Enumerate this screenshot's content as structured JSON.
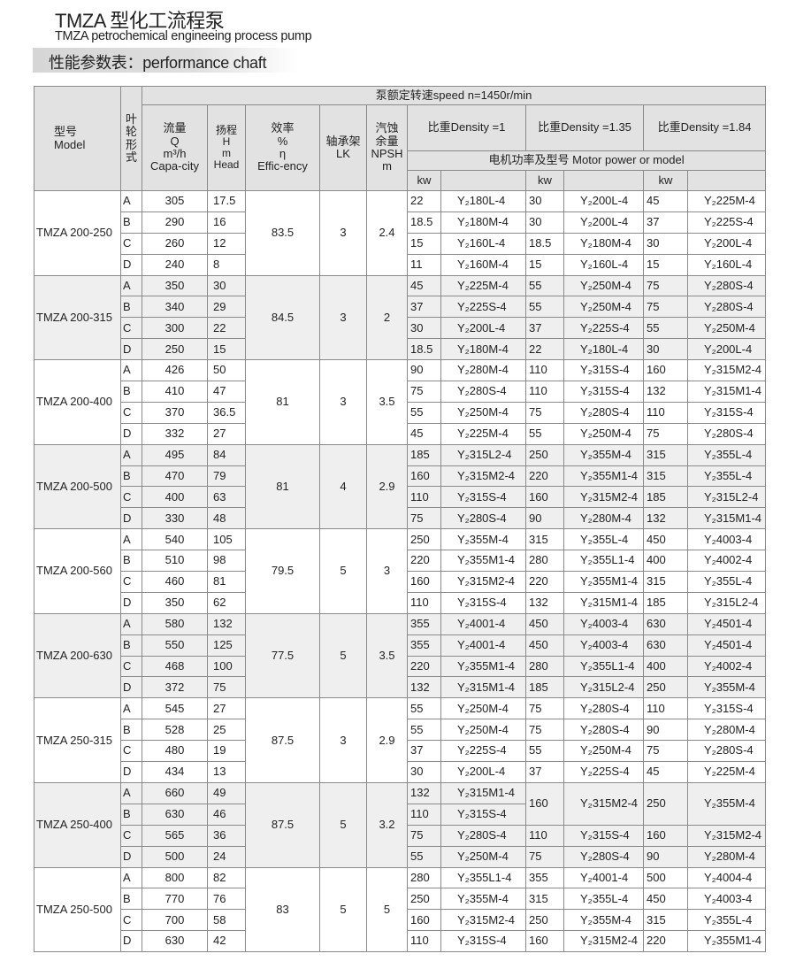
{
  "header": {
    "title": "TMZA 型化工流程泵",
    "subtitle": "TMZA petrochemical engineeing process pump",
    "section": "性能参数表：performance chaft"
  },
  "table_header": {
    "model": "型号\nModel",
    "impeller": "叶\n轮\n形\n式",
    "speed": "泵额定转速speed n=1450r/min",
    "flow": "流量\nQ\nm³/h\nCapa-city",
    "head": "扬程\nH\nm\nHead",
    "eff": "效率\n%\nη\nEffic-ency",
    "lk": "轴承架\nLK",
    "npsh": "汽蚀\n余量\nNPSH\nm",
    "densities": [
      "比重Density =1",
      "比重Density =1.35",
      "比重Density =1.84"
    ],
    "motor": "电机功率及型号  Motor power or model",
    "kw": "kw"
  },
  "groups": [
    {
      "model": "TMZA 200-250",
      "eff": "83.5",
      "lk": "3",
      "npsh": "2.4",
      "rows": [
        {
          "imp": "A",
          "q": "305",
          "h": "17.5",
          "m": [
            [
              "22",
              "Y₂180L-4"
            ],
            [
              "30",
              "Y₂200L-4"
            ],
            [
              "45",
              "Y₂225M-4"
            ]
          ]
        },
        {
          "imp": "B",
          "q": "290",
          "h": "16",
          "m": [
            [
              "18.5",
              "Y₂180M-4"
            ],
            [
              "30",
              "Y₂200L-4"
            ],
            [
              "37",
              "Y₂225S-4"
            ]
          ]
        },
        {
          "imp": "C",
          "q": "260",
          "h": "12",
          "m": [
            [
              "15",
              "Y₂160L-4"
            ],
            [
              "18.5",
              "Y₂180M-4"
            ],
            [
              "30",
              "Y₂200L-4"
            ]
          ]
        },
        {
          "imp": "D",
          "q": "240",
          "h": "8",
          "m": [
            [
              "11",
              "Y₂160M-4"
            ],
            [
              "15",
              "Y₂160L-4"
            ],
            [
              "15",
              "Y₂160L-4"
            ]
          ]
        }
      ]
    },
    {
      "model": "TMZA 200-315",
      "eff": "84.5",
      "lk": "3",
      "npsh": "2",
      "rows": [
        {
          "imp": "A",
          "q": "350",
          "h": "30",
          "m": [
            [
              "45",
              "Y₂225M-4"
            ],
            [
              "55",
              "Y₂250M-4"
            ],
            [
              "75",
              "Y₂280S-4"
            ]
          ]
        },
        {
          "imp": "B",
          "q": "340",
          "h": "29",
          "m": [
            [
              "37",
              "Y₂225S-4"
            ],
            [
              "55",
              "Y₂250M-4"
            ],
            [
              "75",
              "Y₂280S-4"
            ]
          ]
        },
        {
          "imp": "C",
          "q": "300",
          "h": "22",
          "m": [
            [
              "30",
              "Y₂200L-4"
            ],
            [
              "37",
              "Y₂225S-4"
            ],
            [
              "55",
              "Y₂250M-4"
            ]
          ]
        },
        {
          "imp": "D",
          "q": "250",
          "h": "15",
          "m": [
            [
              "18.5",
              "Y₂180M-4"
            ],
            [
              "22",
              "Y₂180L-4"
            ],
            [
              "30",
              "Y₂200L-4"
            ]
          ]
        }
      ]
    },
    {
      "model": "TMZA 200-400",
      "eff": "81",
      "lk": "3",
      "npsh": "3.5",
      "rows": [
        {
          "imp": "A",
          "q": "426",
          "h": "50",
          "m": [
            [
              "90",
              "Y₂280M-4"
            ],
            [
              "110",
              "Y₂315S-4"
            ],
            [
              "160",
              "Y₂315M2-4"
            ]
          ]
        },
        {
          "imp": "B",
          "q": "410",
          "h": "47",
          "m": [
            [
              "75",
              "Y₂280S-4"
            ],
            [
              "110",
              "Y₂315S-4"
            ],
            [
              "132",
              "Y₂315M1-4"
            ]
          ]
        },
        {
          "imp": "C",
          "q": "370",
          "h": "36.5",
          "m": [
            [
              "55",
              "Y₂250M-4"
            ],
            [
              "75",
              "Y₂280S-4"
            ],
            [
              "110",
              "Y₂315S-4"
            ]
          ]
        },
        {
          "imp": "D",
          "q": "332",
          "h": "27",
          "m": [
            [
              "45",
              "Y₂225M-4"
            ],
            [
              "55",
              "Y₂250M-4"
            ],
            [
              "75",
              "Y₂280S-4"
            ]
          ]
        }
      ]
    },
    {
      "model": "TMZA 200-500",
      "eff": "81",
      "lk": "4",
      "npsh": "2.9",
      "rows": [
        {
          "imp": "A",
          "q": "495",
          "h": "84",
          "m": [
            [
              "185",
              "Y₂315L2-4"
            ],
            [
              "250",
              "Y₂355M-4"
            ],
            [
              "315",
              "Y₂355L-4"
            ]
          ]
        },
        {
          "imp": "B",
          "q": "470",
          "h": "79",
          "m": [
            [
              "160",
              "Y₂315M2-4"
            ],
            [
              "220",
              "Y₂355M1-4"
            ],
            [
              "315",
              "Y₂355L-4"
            ]
          ]
        },
        {
          "imp": "C",
          "q": "400",
          "h": "63",
          "m": [
            [
              "110",
              "Y₂315S-4"
            ],
            [
              "160",
              "Y₂315M2-4"
            ],
            [
              "185",
              "Y₂315L2-4"
            ]
          ]
        },
        {
          "imp": "D",
          "q": "330",
          "h": "48",
          "m": [
            [
              "75",
              "Y₂280S-4"
            ],
            [
              "90",
              "Y₂280M-4"
            ],
            [
              "132",
              "Y₂315M1-4"
            ]
          ]
        }
      ]
    },
    {
      "model": "TMZA 200-560",
      "eff": "79.5",
      "lk": "5",
      "npsh": "3",
      "rows": [
        {
          "imp": "A",
          "q": "540",
          "h": "105",
          "m": [
            [
              "250",
              "Y₂355M-4"
            ],
            [
              "315",
              "Y₂355L-4"
            ],
            [
              "450",
              "Y₂4003-4"
            ]
          ]
        },
        {
          "imp": "B",
          "q": "510",
          "h": "98",
          "m": [
            [
              "220",
              "Y₂355M1-4"
            ],
            [
              "280",
              "Y₂355L1-4"
            ],
            [
              "400",
              "Y₂4002-4"
            ]
          ]
        },
        {
          "imp": "C",
          "q": "460",
          "h": "81",
          "m": [
            [
              "160",
              "Y₂315M2-4"
            ],
            [
              "220",
              "Y₂355M1-4"
            ],
            [
              "315",
              "Y₂355L-4"
            ]
          ]
        },
        {
          "imp": "D",
          "q": "350",
          "h": "62",
          "m": [
            [
              "110",
              "Y₂315S-4"
            ],
            [
              "132",
              "Y₂315M1-4"
            ],
            [
              "185",
              "Y₂315L2-4"
            ]
          ]
        }
      ]
    },
    {
      "model": "TMZA 200-630",
      "eff": "77.5",
      "lk": "5",
      "npsh": "3.5",
      "rows": [
        {
          "imp": "A",
          "q": "580",
          "h": "132",
          "m": [
            [
              "355",
              "Y₂4001-4"
            ],
            [
              "450",
              "Y₂4003-4"
            ],
            [
              "630",
              "Y₂4501-4"
            ]
          ]
        },
        {
          "imp": "B",
          "q": "550",
          "h": "125",
          "m": [
            [
              "355",
              "Y₂4001-4"
            ],
            [
              "450",
              "Y₂4003-4"
            ],
            [
              "630",
              "Y₂4501-4"
            ]
          ]
        },
        {
          "imp": "C",
          "q": "468",
          "h": "100",
          "m": [
            [
              "220",
              "Y₂355M1-4"
            ],
            [
              "280",
              "Y₂355L1-4"
            ],
            [
              "400",
              "Y₂4002-4"
            ]
          ]
        },
        {
          "imp": "D",
          "q": "372",
          "h": "75",
          "m": [
            [
              "132",
              "Y₂315M1-4"
            ],
            [
              "185",
              "Y₂315L2-4"
            ],
            [
              "250",
              "Y₂355M-4"
            ]
          ]
        }
      ]
    },
    {
      "model": "TMZA 250-315",
      "eff": "87.5",
      "lk": "3",
      "npsh": "2.9",
      "rows": [
        {
          "imp": "A",
          "q": "545",
          "h": "27",
          "m": [
            [
              "55",
              "Y₂250M-4"
            ],
            [
              "75",
              "Y₂280S-4"
            ],
            [
              "110",
              "Y₂315S-4"
            ]
          ]
        },
        {
          "imp": "B",
          "q": "528",
          "h": "25",
          "m": [
            [
              "55",
              "Y₂250M-4"
            ],
            [
              "75",
              "Y₂280S-4"
            ],
            [
              "90",
              "Y₂280M-4"
            ]
          ]
        },
        {
          "imp": "C",
          "q": "480",
          "h": "19",
          "m": [
            [
              "37",
              "Y₂225S-4"
            ],
            [
              "55",
              "Y₂250M-4"
            ],
            [
              "75",
              "Y₂280S-4"
            ]
          ]
        },
        {
          "imp": "D",
          "q": "434",
          "h": "13",
          "m": [
            [
              "30",
              "Y₂200L-4"
            ],
            [
              "37",
              "Y₂225S-4"
            ],
            [
              "45",
              "Y₂225M-4"
            ]
          ]
        }
      ]
    },
    {
      "model": "TMZA 250-400",
      "eff": "87.5",
      "lk": "5",
      "npsh": "3.2",
      "rows": [
        {
          "imp": "A",
          "q": "660",
          "h": "49",
          "m": [
            [
              "132",
              "Y₂315M1-4"
            ],
            [
              "160",
              "Y₂315M2-4"
            ],
            [
              "250",
              "Y₂355M-4"
            ]
          ]
        },
        {
          "imp": "B",
          "q": "630",
          "h": "46",
          "m": [
            [
              "110",
              "Y₂315S-4"
            ],
            null,
            null
          ]
        },
        {
          "imp": "C",
          "q": "565",
          "h": "36",
          "m": [
            [
              "75",
              "Y₂280S-4"
            ],
            [
              "110",
              "Y₂315S-4"
            ],
            [
              "160",
              "Y₂315M2-4"
            ]
          ]
        },
        {
          "imp": "D",
          "q": "500",
          "h": "24",
          "m": [
            [
              "55",
              "Y₂250M-4"
            ],
            [
              "75",
              "Y₂280S-4"
            ],
            [
              "90",
              "Y₂280M-4"
            ]
          ]
        }
      ]
    },
    {
      "model": "TMZA 250-500",
      "eff": "83",
      "lk": "5",
      "npsh": "5",
      "rows": [
        {
          "imp": "A",
          "q": "800",
          "h": "82",
          "m": [
            [
              "280",
              "Y₂355L1-4"
            ],
            [
              "355",
              "Y₂4001-4"
            ],
            [
              "500",
              "Y₂4004-4"
            ]
          ]
        },
        {
          "imp": "B",
          "q": "770",
          "h": "76",
          "m": [
            [
              "250",
              "Y₂355M-4"
            ],
            [
              "315",
              "Y₂355L-4"
            ],
            [
              "450",
              "Y₂4003-4"
            ]
          ]
        },
        {
          "imp": "C",
          "q": "700",
          "h": "58",
          "m": [
            [
              "160",
              "Y₂315M2-4"
            ],
            [
              "250",
              "Y₂355M-4"
            ],
            [
              "315",
              "Y₂355L-4"
            ]
          ]
        },
        {
          "imp": "D",
          "q": "630",
          "h": "42",
          "m": [
            [
              "110",
              "Y₂315S-4"
            ],
            [
              "160",
              "Y₂315M2-4"
            ],
            [
              "220",
              "Y₂355M1-4"
            ]
          ]
        }
      ]
    }
  ]
}
